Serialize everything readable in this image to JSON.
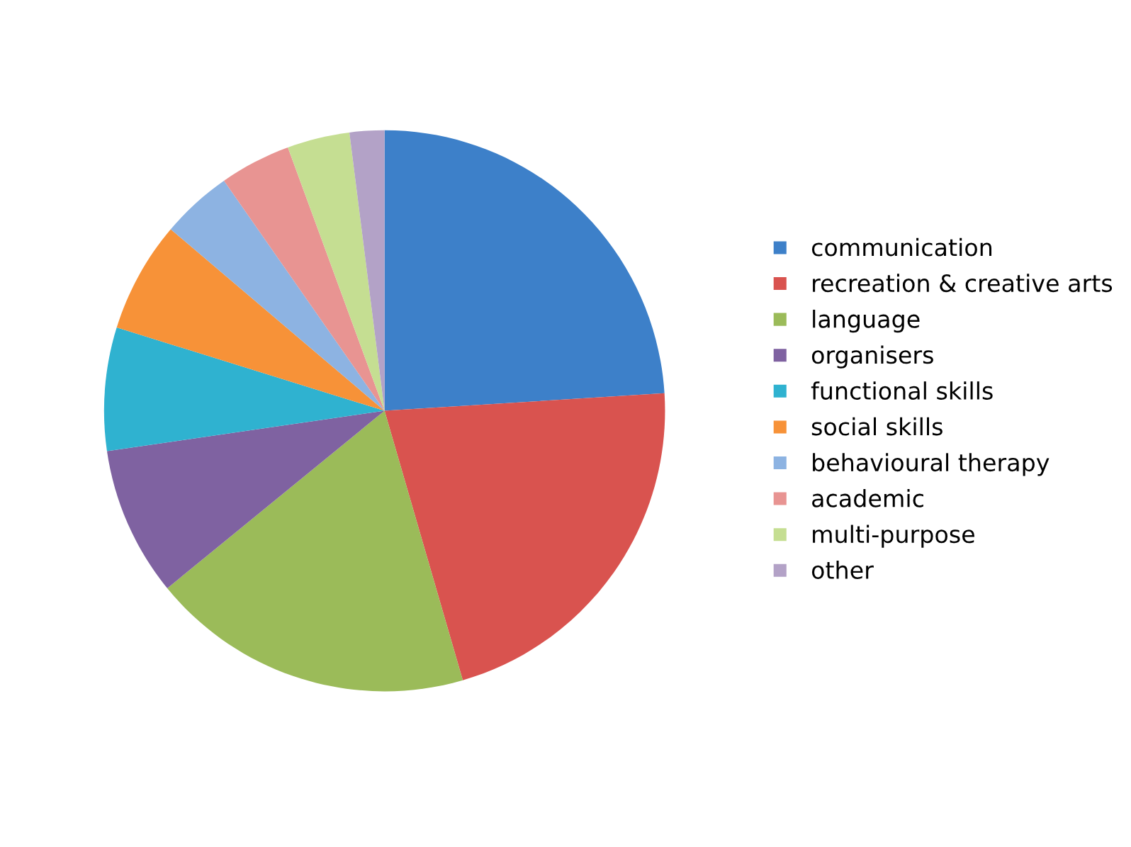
{
  "chart_data": {
    "type": "pie",
    "categories": [
      "communication",
      "recreation & creative arts",
      "language",
      "organisers",
      "functional skills",
      "social skills",
      "behavioural therapy",
      "academic",
      "multi-purpose",
      "other"
    ],
    "values": [
      24.0,
      21.5,
      18.6,
      8.6,
      7.1,
      6.4,
      4.1,
      4.1,
      3.6,
      2.0
    ],
    "colors": [
      "#3d80c9",
      "#d9534f",
      "#9bbb59",
      "#7f62a1",
      "#2fb2d0",
      "#f79238",
      "#8db3e2",
      "#e89492",
      "#c5de92",
      "#b3a2c7"
    ],
    "legend": "right"
  }
}
